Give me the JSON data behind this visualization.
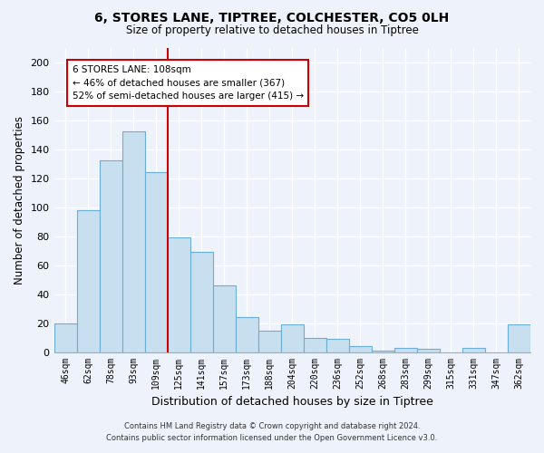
{
  "title": "6, STORES LANE, TIPTREE, COLCHESTER, CO5 0LH",
  "subtitle": "Size of property relative to detached houses in Tiptree",
  "xlabel": "Distribution of detached houses by size in Tiptree",
  "ylabel": "Number of detached properties",
  "bar_labels": [
    "46sqm",
    "62sqm",
    "78sqm",
    "93sqm",
    "109sqm",
    "125sqm",
    "141sqm",
    "157sqm",
    "173sqm",
    "188sqm",
    "204sqm",
    "220sqm",
    "236sqm",
    "252sqm",
    "268sqm",
    "283sqm",
    "299sqm",
    "315sqm",
    "331sqm",
    "347sqm",
    "362sqm"
  ],
  "bar_values": [
    20,
    98,
    132,
    152,
    124,
    79,
    69,
    46,
    24,
    15,
    19,
    10,
    9,
    4,
    1,
    3,
    2,
    0,
    3,
    0,
    19
  ],
  "bar_color": "#c8dff0",
  "bar_edge_color": "#6aaed6",
  "highlight_index": 4,
  "vline_color": "#cc0000",
  "ylim": [
    0,
    210
  ],
  "yticks": [
    0,
    20,
    40,
    60,
    80,
    100,
    120,
    140,
    160,
    180,
    200
  ],
  "annotation_title": "6 STORES LANE: 108sqm",
  "annotation_line1": "← 46% of detached houses are smaller (367)",
  "annotation_line2": "52% of semi-detached houses are larger (415) →",
  "annotation_box_color": "#ffffff",
  "annotation_box_edge": "#cc0000",
  "footer_line1": "Contains HM Land Registry data © Crown copyright and database right 2024.",
  "footer_line2": "Contains public sector information licensed under the Open Government Licence v3.0.",
  "background_color": "#eef2fb",
  "grid_color": "#ffffff"
}
